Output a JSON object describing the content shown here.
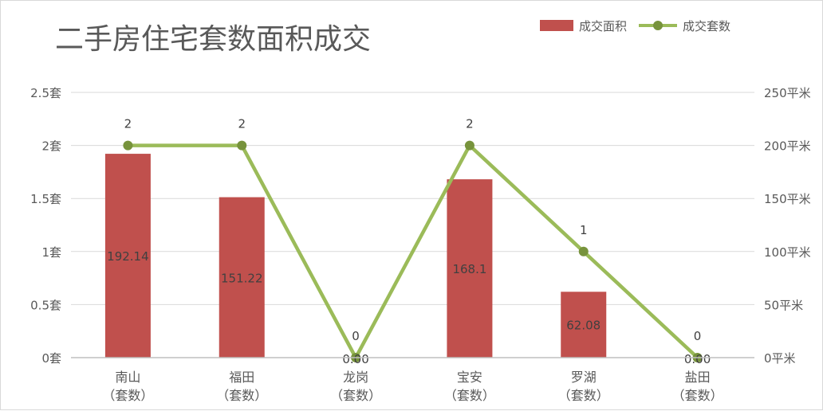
{
  "chart_data": {
    "type": "bar",
    "title": "二手房住宅套数面积成交",
    "categories": [
      [
        "南山",
        "（套数）"
      ],
      [
        "福田",
        "（套数）"
      ],
      [
        "龙岗",
        "（套数）"
      ],
      [
        "宝安",
        "（套数）"
      ],
      [
        "罗湖",
        "（套数）"
      ],
      [
        "盐田",
        "（套数）"
      ]
    ],
    "series": [
      {
        "name": "成交面积",
        "type": "bar",
        "axis": "right",
        "values": [
          192.14,
          151.22,
          0,
          168.1,
          62.08,
          0
        ],
        "labels": [
          "192.14",
          "151.22",
          "0.00",
          "168.1",
          "62.08",
          "0.00"
        ],
        "color": "#c0504d"
      },
      {
        "name": "成交套数",
        "type": "line",
        "axis": "left",
        "values": [
          2,
          2,
          0,
          2,
          1,
          0
        ],
        "labels": [
          "2",
          "2",
          "0",
          "2",
          "1",
          "0"
        ],
        "color": "#9bbb59"
      }
    ],
    "y_left": {
      "min": 0,
      "max": 2.5,
      "step": 0.5,
      "ticks": [
        "0套",
        "0.5套",
        "1套",
        "1.5套",
        "2套",
        "2.5套"
      ]
    },
    "y_right": {
      "min": 0,
      "max": 250,
      "step": 50,
      "ticks": [
        "0平米",
        "50平米",
        "100平米",
        "150平米",
        "200平米",
        "250平米"
      ]
    },
    "grid": true,
    "legend": "top-right"
  }
}
